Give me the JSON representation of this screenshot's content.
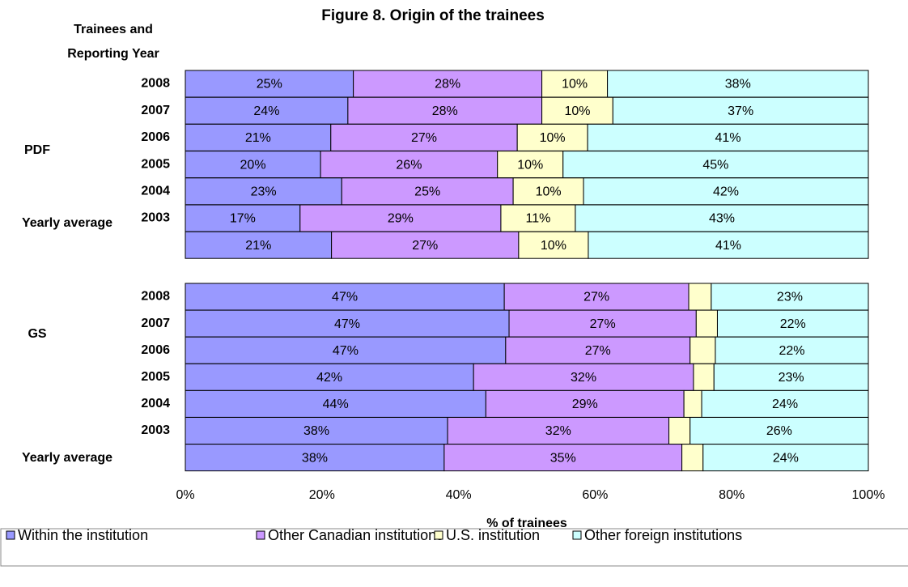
{
  "chart_data": {
    "type": "stacked_bar_horizontal",
    "title": "Figure 8. Origin of the trainees",
    "y_label": [
      "Trainees and",
      "Reporting Year"
    ],
    "x_label": "% of trainees",
    "group_labels": [
      "PDF",
      "GS"
    ],
    "average_labels": [
      "Yearly average",
      "Yearly average"
    ],
    "categories": [
      "2008",
      "2007",
      "2006",
      "2005",
      "2004",
      "2003",
      null,
      "2008",
      "2007",
      "2006",
      "2005",
      "2004",
      "2003",
      null
    ],
    "series": [
      {
        "name": "Within the institution",
        "color": "#9999ff",
        "values": [
          24.6,
          23.8,
          21.3,
          19.8,
          22.9,
          16.8,
          21.4,
          46.7,
          47.4,
          46.9,
          42.2,
          44.0,
          38.4,
          37.9
        ],
        "value_labels": [
          "25%",
          "24%",
          "21%",
          "20%",
          "23%",
          "17%",
          "21%",
          "47%",
          "47%",
          "47%",
          "42%",
          "44%",
          "38%",
          "38%"
        ]
      },
      {
        "name": "Other Canadian institutions",
        "color": "#cc99ff",
        "values": [
          27.6,
          28.4,
          27.3,
          25.9,
          25.1,
          29.4,
          27.4,
          27.0,
          27.4,
          27.0,
          32.2,
          29.0,
          32.4,
          34.8
        ],
        "value_labels": [
          "28%",
          "28%",
          "27%",
          "26%",
          "25%",
          "29%",
          "27%",
          "27%",
          "27%",
          "27%",
          "32%",
          "29%",
          "32%",
          "35%"
        ]
      },
      {
        "name": "U.S. institution",
        "color": "#ffffcc",
        "values": [
          9.6,
          10.4,
          10.3,
          9.6,
          10.3,
          10.9,
          10.2,
          3.3,
          3.1,
          3.7,
          3.0,
          2.6,
          3.1,
          3.1
        ],
        "value_labels": [
          "10%",
          "10%",
          "10%",
          "10%",
          "10%",
          "11%",
          "10%",
          null,
          null,
          null,
          null,
          null,
          null,
          null
        ]
      },
      {
        "name": "Other foreign institutions",
        "color": "#ccffff",
        "values": [
          38.2,
          37.4,
          41.1,
          44.7,
          41.7,
          42.9,
          41.0,
          23.0,
          22.1,
          22.4,
          22.6,
          24.4,
          26.1,
          24.2
        ],
        "value_labels": [
          "38%",
          "37%",
          "41%",
          "45%",
          "42%",
          "43%",
          "41%",
          "23%",
          "22%",
          "22%",
          "23%",
          "24%",
          "26%",
          "24%"
        ]
      }
    ],
    "xlim": [
      0,
      100
    ],
    "xticks": [
      {
        "value": 0,
        "label": "0%"
      },
      {
        "value": 20,
        "label": "20%"
      },
      {
        "value": 40,
        "label": "40%"
      },
      {
        "value": 60,
        "label": "60%"
      },
      {
        "value": 80,
        "label": "80%"
      },
      {
        "value": 100,
        "label": "100%"
      }
    ],
    "grid": false,
    "legend": "bottom"
  }
}
